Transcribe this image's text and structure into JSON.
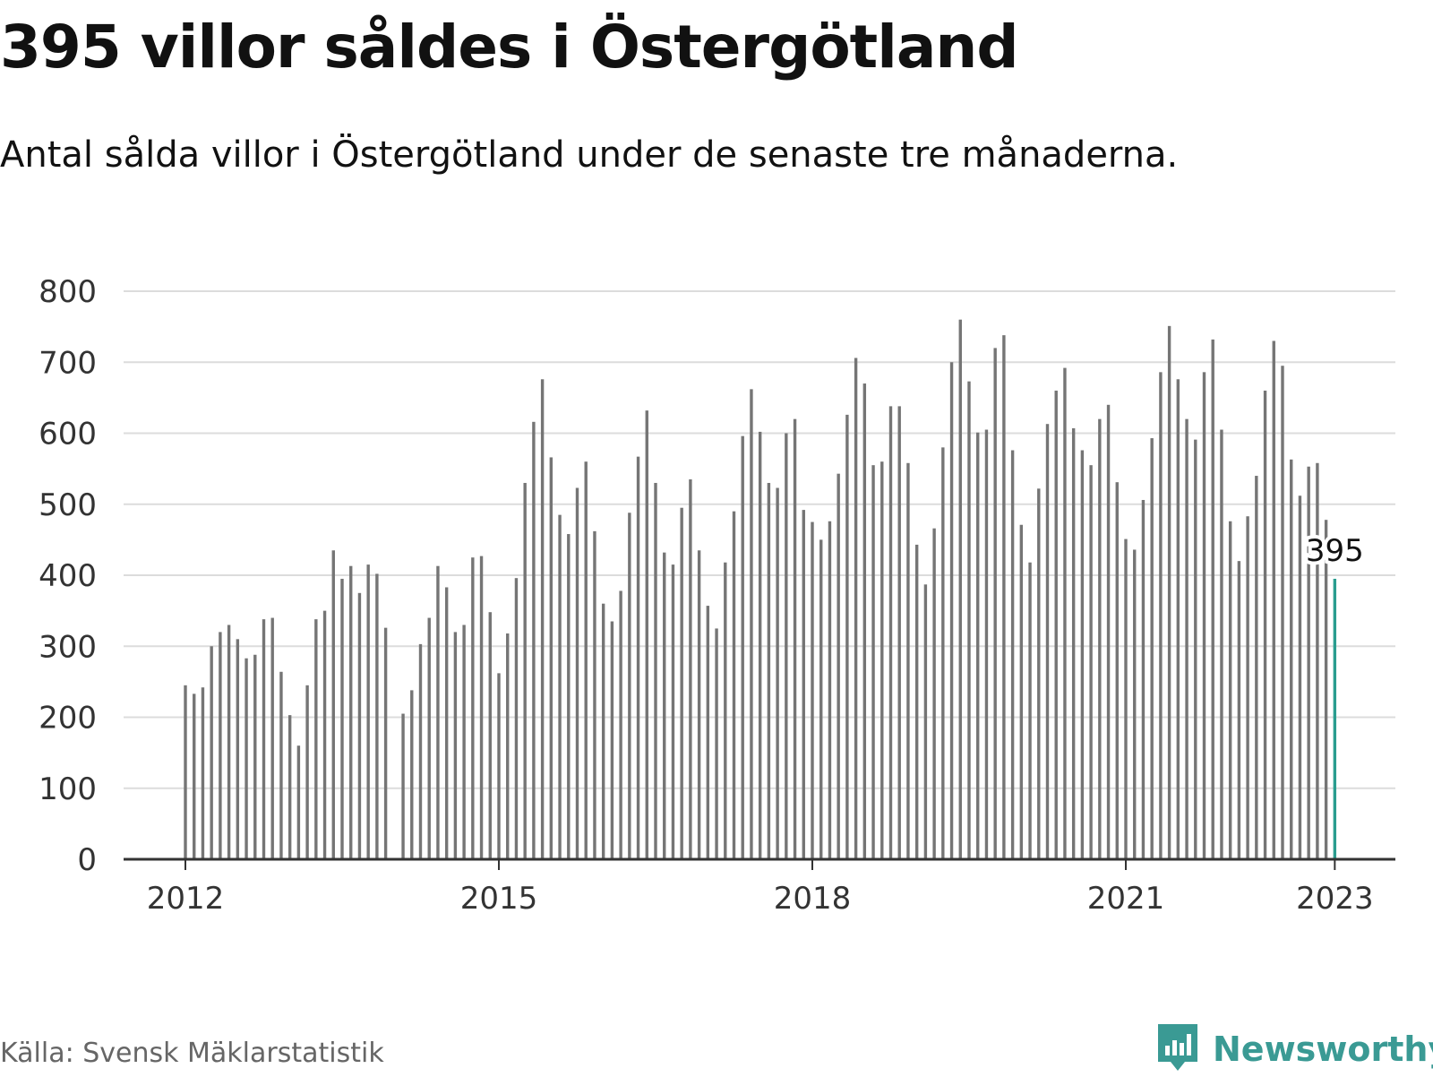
{
  "header": {
    "title": "395 villor såldes i Östergötland",
    "subtitle": "Antal sålda villor i Östergötland under de senaste tre månaderna."
  },
  "footer": {
    "source": "Källa: Svensk Mäklarstatistik",
    "brand": "Newsworthy",
    "brand_icon": "bar-chart-speech-bubble-icon"
  },
  "colors": {
    "bar": "#757575",
    "highlight": "#2a9d8f",
    "grid": "#dcdcdc",
    "axis": "#333333",
    "brand": "#3a9a94"
  },
  "chart_data": {
    "type": "bar",
    "title": "395 villor såldes i Östergötland",
    "subtitle": "Antal sålda villor i Östergötland under de senaste tre månaderna.",
    "xlabel": "",
    "ylabel": "",
    "ylim": [
      0,
      800
    ],
    "yticks": [
      0,
      100,
      200,
      300,
      400,
      500,
      600,
      700,
      800
    ],
    "xticks": [
      {
        "label": "2012",
        "date": "2012-01"
      },
      {
        "label": "2015",
        "date": "2015-01"
      },
      {
        "label": "2018",
        "date": "2018-01"
      },
      {
        "label": "2021",
        "date": "2021-01"
      },
      {
        "label": "2023",
        "date": "2023-01"
      }
    ],
    "grid": true,
    "legend": "none",
    "start": "2012-01",
    "end": "2023-01",
    "values": [
      245,
      233,
      242,
      300,
      320,
      330,
      310,
      283,
      288,
      338,
      340,
      264,
      203,
      160,
      245,
      338,
      350,
      435,
      395,
      413,
      375,
      415,
      402,
      326,
      null,
      205,
      238,
      303,
      340,
      413,
      383,
      320,
      330,
      425,
      427,
      348,
      262,
      318,
      396,
      530,
      616,
      676,
      566,
      485,
      458,
      523,
      560,
      462,
      360,
      335,
      378,
      488,
      567,
      632,
      530,
      432,
      415,
      495,
      535,
      435,
      357,
      325,
      418,
      490,
      596,
      662,
      602,
      530,
      523,
      600,
      620,
      492,
      475,
      450,
      476,
      543,
      626,
      706,
      670,
      555,
      560,
      638,
      638,
      558,
      443,
      387,
      466,
      580,
      700,
      760,
      673,
      601,
      605,
      720,
      738,
      576,
      471,
      418,
      522,
      613,
      660,
      692,
      607,
      576,
      555,
      620,
      640,
      531,
      451,
      436,
      506,
      593,
      686,
      751,
      676,
      620,
      591,
      686,
      732,
      605,
      476,
      420,
      483,
      540,
      660,
      730,
      695,
      563,
      512,
      553,
      558,
      478,
      395
    ],
    "highlight": {
      "date": "2023-01",
      "value": 395,
      "label": "395"
    }
  }
}
